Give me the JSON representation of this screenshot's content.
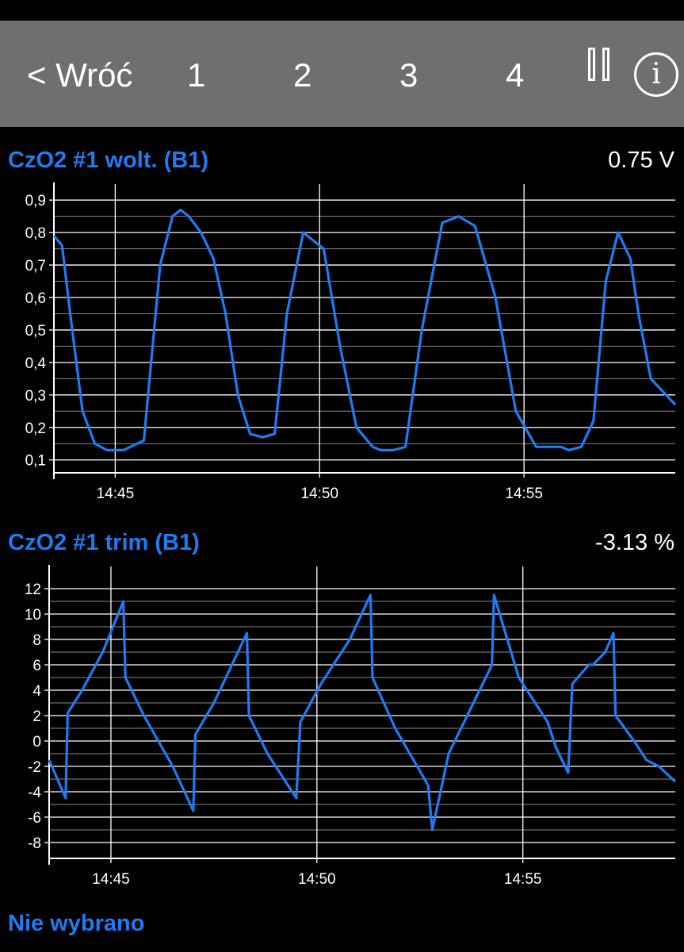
{
  "toolbar": {
    "back_label": "< Wróć",
    "tabs": [
      "1",
      "2",
      "3",
      "4"
    ],
    "pause_icon": "pause-icon",
    "info_label": "i"
  },
  "panels": [
    {
      "title": "CzO2 #1 wolt. (B1)",
      "value": "0.75 V"
    },
    {
      "title": "CzO2 #1 trim (B1)",
      "value": "-3.13 %"
    }
  ],
  "footer": {
    "label": "Nie wybrano"
  },
  "colors": {
    "line": "#1f7bf2",
    "background": "#000000",
    "toolbar": "#6f6f6f",
    "grid": "#ffffff"
  },
  "chart_data": [
    {
      "type": "line",
      "title": "CzO2 #1 wolt. (B1)",
      "xlabel": "",
      "ylabel": "",
      "x_ticks": [
        "14:45",
        "14:50",
        "14:55"
      ],
      "y_ticks": [
        "0,1",
        "0,2",
        "0,3",
        "0,4",
        "0,5",
        "0,6",
        "0,7",
        "0,8",
        "0,9"
      ],
      "ylim": [
        0.07,
        0.92
      ],
      "xlim": [
        0,
        15.2
      ],
      "grid": true,
      "series": [
        {
          "x": [
            0,
            0.2,
            0.4,
            0.7,
            1.0,
            1.3,
            1.7,
            2.2,
            2.6,
            2.9,
            3.1,
            3.3,
            3.6,
            3.9,
            4.2,
            4.5,
            4.8,
            5.1,
            5.4,
            5.7,
            6.1,
            6.6,
            7.0,
            7.4,
            7.8,
            8.0,
            8.3,
            8.6,
            9.0,
            9.5,
            9.9,
            10.3,
            10.8,
            11.3,
            11.8,
            12.4,
            12.6,
            12.9,
            13.2,
            13.5,
            13.8,
            14.1,
            14.3,
            14.6,
            15.2
          ],
          "values": [
            0.79,
            0.76,
            0.55,
            0.25,
            0.15,
            0.13,
            0.13,
            0.16,
            0.7,
            0.85,
            0.87,
            0.85,
            0.8,
            0.72,
            0.55,
            0.3,
            0.18,
            0.17,
            0.18,
            0.55,
            0.8,
            0.75,
            0.45,
            0.2,
            0.14,
            0.13,
            0.13,
            0.14,
            0.5,
            0.83,
            0.85,
            0.82,
            0.6,
            0.25,
            0.14,
            0.14,
            0.13,
            0.14,
            0.22,
            0.65,
            0.8,
            0.72,
            0.55,
            0.35,
            0.27
          ]
        }
      ]
    },
    {
      "type": "line",
      "title": "CzO2 #1 trim (B1)",
      "xlabel": "",
      "ylabel": "",
      "x_ticks": [
        "14:45",
        "14:50",
        "14:55"
      ],
      "y_ticks": [
        "-8",
        "-6",
        "-4",
        "-2",
        "0",
        "2",
        "4",
        "6",
        "8",
        "10",
        "12"
      ],
      "ylim": [
        -9,
        13
      ],
      "xlim": [
        0,
        15.2
      ],
      "grid": true,
      "series": [
        {
          "x": [
            0,
            0.4,
            0.45,
            0.8,
            1.3,
            1.8,
            1.85,
            2.3,
            3.0,
            3.5,
            3.55,
            4.0,
            4.8,
            4.85,
            5.3,
            6.0,
            6.1,
            6.6,
            7.3,
            7.8,
            7.85,
            8.4,
            9.2,
            9.3,
            9.7,
            10.3,
            10.75,
            10.8,
            11.4,
            12.1,
            12.3,
            12.6,
            12.7,
            13.1,
            13.2,
            13.5,
            13.7,
            13.75,
            14.2,
            14.5,
            14.8,
            15.2
          ],
          "values": [
            -1.5,
            -4.5,
            2.2,
            4,
            7,
            11,
            5,
            2,
            -2,
            -5.5,
            0.5,
            3,
            8.5,
            2,
            -1,
            -4.5,
            1.5,
            4.5,
            8,
            11.5,
            5,
            1,
            -3.5,
            -7,
            -1,
            3,
            6,
            11.5,
            5,
            1.5,
            -0.5,
            -2.5,
            4.5,
            6,
            6,
            7,
            8.5,
            2,
            0,
            -1.5,
            -2,
            -3.2
          ]
        }
      ]
    }
  ]
}
